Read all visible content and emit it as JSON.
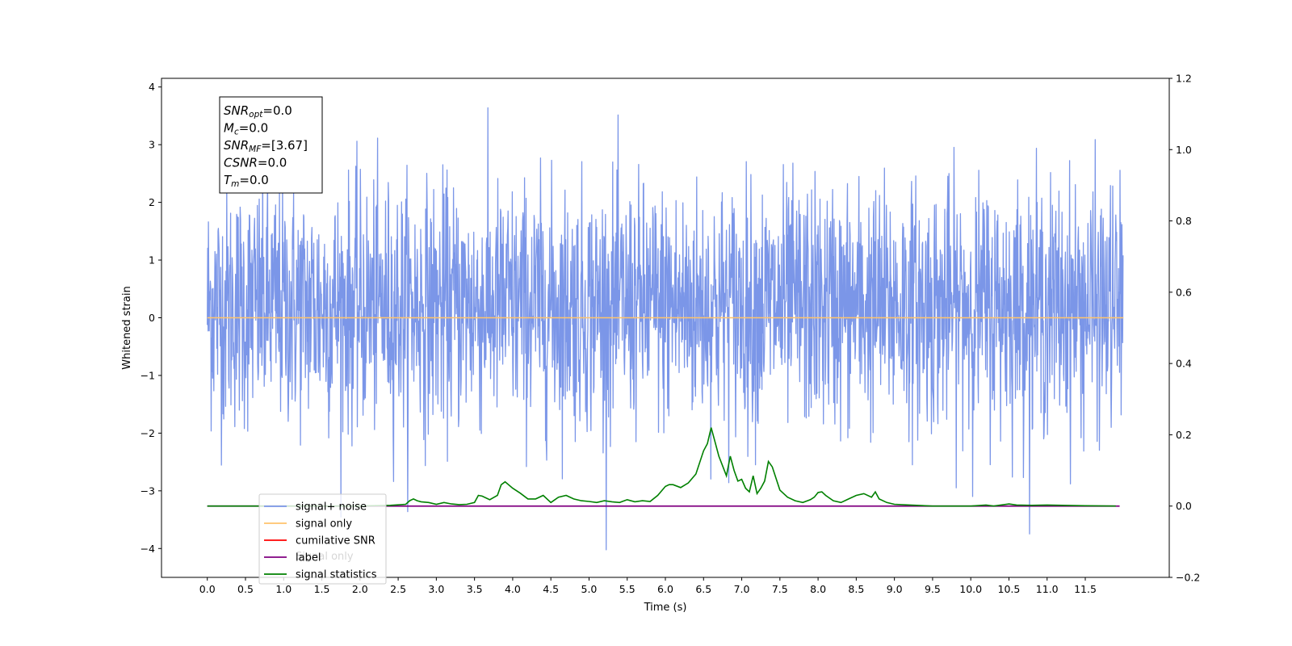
{
  "chart_data": {
    "type": "line",
    "xlabel": "Time (s)",
    "ylabel": "Whitened strain",
    "xlim": [
      -0.6,
      12.6
    ],
    "ylim": [
      -4.5,
      4.15
    ],
    "y2lim": [
      -0.2,
      1.2
    ],
    "x_ticks": [
      "0.0",
      "0.5",
      "1.0",
      "1.5",
      "2.0",
      "2.5",
      "3.0",
      "3.5",
      "4.0",
      "4.5",
      "5.0",
      "5.5",
      "6.0",
      "6.5",
      "7.0",
      "7.5",
      "8.0",
      "8.5",
      "9.0",
      "9.5",
      "10.0",
      "10.5",
      "11.0",
      "11.5"
    ],
    "y_ticks": [
      "4",
      "3",
      "2",
      "1",
      "0",
      "−1",
      "−2",
      "−3",
      "−4"
    ],
    "y2_ticks": [
      "1.2",
      "1.0",
      "0.8",
      "0.6",
      "0.4",
      "0.2",
      "0.0",
      "−0.2"
    ],
    "annotation": [
      {
        "main": "SNR",
        "sub": "opt",
        "rest": "=0.0"
      },
      {
        "main": "M",
        "sub": "c",
        "rest": "=0.0"
      },
      {
        "main": "SNR",
        "sub": "MF",
        "rest": "=[3.67]"
      },
      {
        "main": "CSNR",
        "sub": "",
        "rest": "=0.0"
      },
      {
        "main": "T",
        "sub": "m",
        "rest": "=0.0"
      }
    ],
    "legend": {
      "placement": "lower-left",
      "entries": [
        {
          "label": "signal+ noise",
          "color": "#7b96e8"
        },
        {
          "label": "signal only",
          "color": "#ffc36b"
        },
        {
          "label": "cumilative SNR",
          "color": "#ff0000"
        },
        {
          "label": "label",
          "color": "#800080"
        },
        {
          "label": "signal statistics",
          "color": "#008000"
        }
      ],
      "hidden_text": "Signal only"
    },
    "series": [
      {
        "name": "signal+ noise",
        "axis": "left",
        "color": "#7b96e8",
        "description": "whitened noise ~N(0,1), 0 to 12 s"
      },
      {
        "name": "signal only",
        "axis": "left",
        "color": "#ffc36b",
        "x": [
          0.0,
          12.0
        ],
        "y": [
          0.0,
          0.0
        ]
      },
      {
        "name": "label",
        "axis": "right",
        "color": "#800080",
        "x": [
          0.0,
          11.95
        ],
        "y": [
          0.0,
          0.0
        ]
      },
      {
        "name": "signal statistics",
        "axis": "right",
        "color": "#008000",
        "x": [
          0.0,
          2.0,
          2.4,
          2.6,
          2.65,
          2.7,
          2.75,
          2.8,
          2.9,
          3.0,
          3.1,
          3.2,
          3.3,
          3.4,
          3.5,
          3.55,
          3.6,
          3.7,
          3.8,
          3.85,
          3.9,
          4.0,
          4.1,
          4.2,
          4.3,
          4.4,
          4.5,
          4.6,
          4.7,
          4.8,
          4.9,
          5.0,
          5.1,
          5.2,
          5.3,
          5.4,
          5.5,
          5.6,
          5.7,
          5.8,
          5.9,
          6.0,
          6.05,
          6.1,
          6.2,
          6.3,
          6.4,
          6.5,
          6.55,
          6.6,
          6.65,
          6.7,
          6.8,
          6.85,
          6.9,
          6.95,
          7.0,
          7.05,
          7.1,
          7.15,
          7.2,
          7.25,
          7.3,
          7.35,
          7.4,
          7.5,
          7.6,
          7.7,
          7.8,
          7.9,
          7.95,
          8.0,
          8.05,
          8.1,
          8.2,
          8.3,
          8.4,
          8.5,
          8.6,
          8.7,
          8.75,
          8.8,
          8.9,
          9.0,
          9.2,
          9.5,
          10.0,
          10.2,
          10.3,
          10.5,
          10.6,
          10.8,
          11.0,
          11.2,
          11.5,
          11.9
        ],
        "y": [
          0.0,
          0.0,
          0.002,
          0.005,
          0.015,
          0.02,
          0.015,
          0.012,
          0.01,
          0.005,
          0.01,
          0.006,
          0.004,
          0.005,
          0.01,
          0.03,
          0.028,
          0.018,
          0.03,
          0.06,
          0.068,
          0.05,
          0.036,
          0.02,
          0.02,
          0.03,
          0.01,
          0.025,
          0.03,
          0.02,
          0.015,
          0.013,
          0.01,
          0.015,
          0.012,
          0.01,
          0.018,
          0.012,
          0.015,
          0.013,
          0.03,
          0.055,
          0.06,
          0.06,
          0.052,
          0.065,
          0.09,
          0.155,
          0.175,
          0.22,
          0.18,
          0.14,
          0.085,
          0.14,
          0.1,
          0.07,
          0.075,
          0.05,
          0.04,
          0.085,
          0.035,
          0.05,
          0.07,
          0.125,
          0.11,
          0.045,
          0.025,
          0.015,
          0.01,
          0.018,
          0.025,
          0.038,
          0.04,
          0.03,
          0.015,
          0.01,
          0.02,
          0.03,
          0.035,
          0.025,
          0.04,
          0.02,
          0.01,
          0.005,
          0.003,
          0.0,
          0.0,
          0.003,
          0.0,
          0.006,
          0.003,
          0.002,
          0.003,
          0.002,
          0.001,
          0.0
        ]
      }
    ]
  }
}
